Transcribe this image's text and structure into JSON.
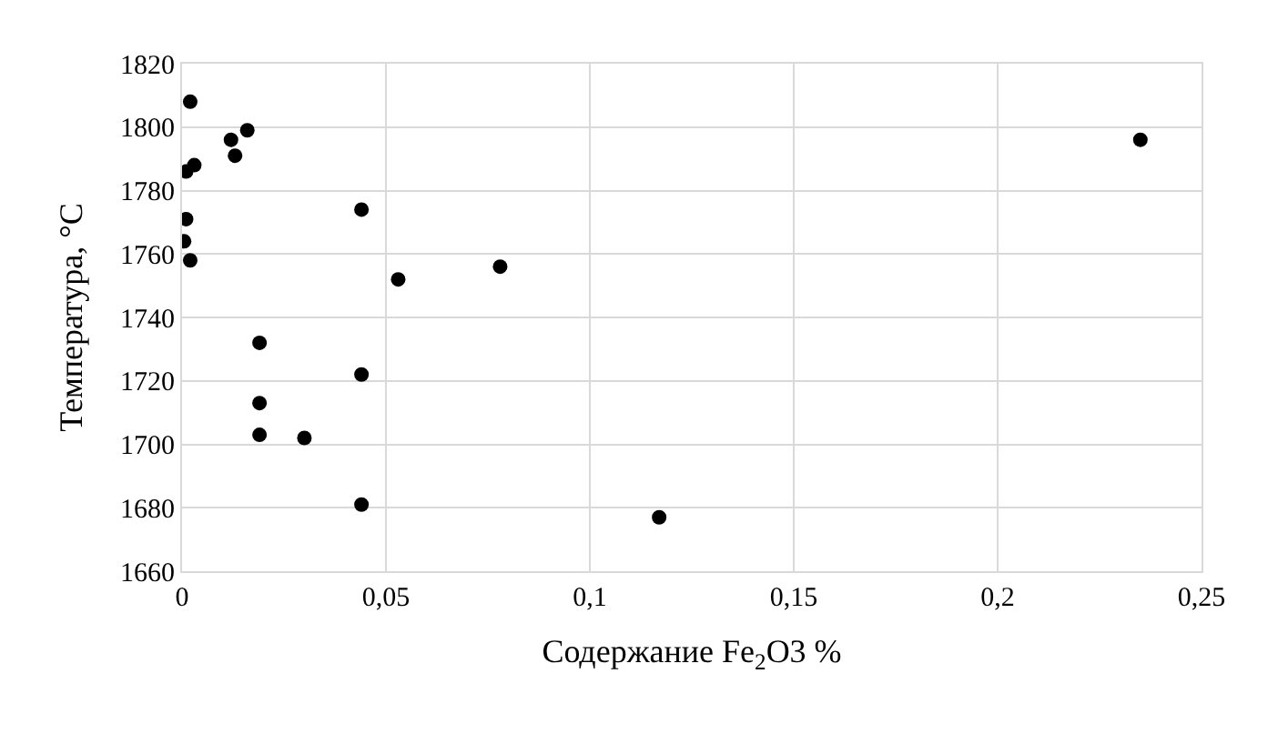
{
  "chart_data": {
    "type": "scatter",
    "xlabel": "Содержание Fe$_{2}$O3 %",
    "ylabel": "Температура, °C",
    "x": [
      0.002,
      0.016,
      0.012,
      0.013,
      0.003,
      0.001,
      0.001,
      0.0005,
      0.002,
      0.044,
      0.053,
      0.078,
      0.019,
      0.044,
      0.019,
      0.019,
      0.03,
      0.044,
      0.117,
      0.235
    ],
    "values": [
      1808,
      1799,
      1796,
      1791,
      1788,
      1786,
      1771,
      1764,
      1758,
      1774,
      1752,
      1756,
      1732,
      1722,
      1713,
      1703,
      1702,
      1681,
      1677,
      1796
    ],
    "color": "#000000",
    "marker": "circle",
    "xlim": [
      0,
      0.25
    ],
    "xticks": [
      {
        "value": 0,
        "label": "0"
      },
      {
        "value": 0.05,
        "label": "0,05"
      },
      {
        "value": 0.1,
        "label": "0,1"
      },
      {
        "value": 0.15,
        "label": "0,15"
      },
      {
        "value": 0.2,
        "label": "0,2"
      },
      {
        "value": 0.25,
        "label": "0,25"
      }
    ],
    "ylim": [
      1660,
      1820
    ],
    "yticks": [
      1660,
      1680,
      1700,
      1720,
      1740,
      1760,
      1780,
      1800,
      1820
    ],
    "grid": true
  }
}
